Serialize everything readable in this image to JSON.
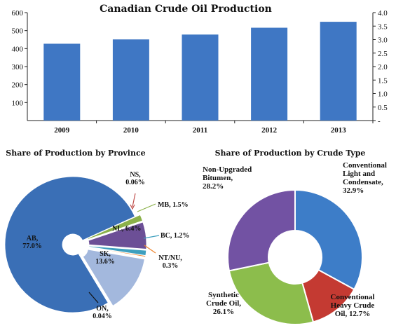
{
  "chart_data": [
    {
      "type": "bar",
      "title": "Canadian Crude Oil Production",
      "categories": [
        "2009",
        "2010",
        "2011",
        "2012",
        "2013"
      ],
      "values": [
        427,
        451,
        478,
        516,
        549
      ],
      "ylim": [
        0,
        600
      ],
      "yticks": [
        "100",
        "200",
        "300",
        "400",
        "500",
        "600"
      ],
      "y2lim": [
        0,
        4.0
      ],
      "y2ticks": [
        "-",
        "0.5",
        "1.0",
        "1.5",
        "2.0",
        "2.5",
        "3.0",
        "3.5",
        "4.0"
      ],
      "color": "#3f77c4",
      "grid": false,
      "legend": "none"
    },
    {
      "type": "pie",
      "title": "Share of Production by Province",
      "slices": [
        {
          "label": "AB,\n77.0%",
          "value": 77.0,
          "color": "#3a6fb6"
        },
        {
          "label": "NS,\n0.06%",
          "value": 0.06,
          "color": "#c0504d"
        },
        {
          "label": "MB, 1.5%",
          "value": 1.5,
          "color": "#8bb14a"
        },
        {
          "label": "NL, 6.4%",
          "value": 6.4,
          "color": "#6c4f96"
        },
        {
          "label": "BC, 1.2%",
          "value": 1.2,
          "color": "#3e9fbe"
        },
        {
          "label": "NT/NU,\n0.3%",
          "value": 0.3,
          "color": "#f0842c"
        },
        {
          "label": "SK,\n13.6%",
          "value": 13.6,
          "color": "#a3b8dd"
        },
        {
          "label": "ON,\n0.04%",
          "value": 0.04,
          "color": "#1f3b66"
        }
      ]
    },
    {
      "type": "pie",
      "title": "Share of Production by Crude Type",
      "slices": [
        {
          "label": "Conventional\nLight and\nCondensate,\n32.9%",
          "value": 32.9,
          "color": "#3d7dc8"
        },
        {
          "label": "Conventional\nHeavy Crude\nOil, 12.7%",
          "value": 12.7,
          "color": "#c43a32"
        },
        {
          "label": "Synthetic\nCrude Oil,\n26.1%",
          "value": 26.1,
          "color": "#8cbd4c"
        },
        {
          "label": "Non-Upgraded\nBitumen,\n28.2%",
          "value": 28.2,
          "color": "#7252a3"
        }
      ]
    }
  ]
}
